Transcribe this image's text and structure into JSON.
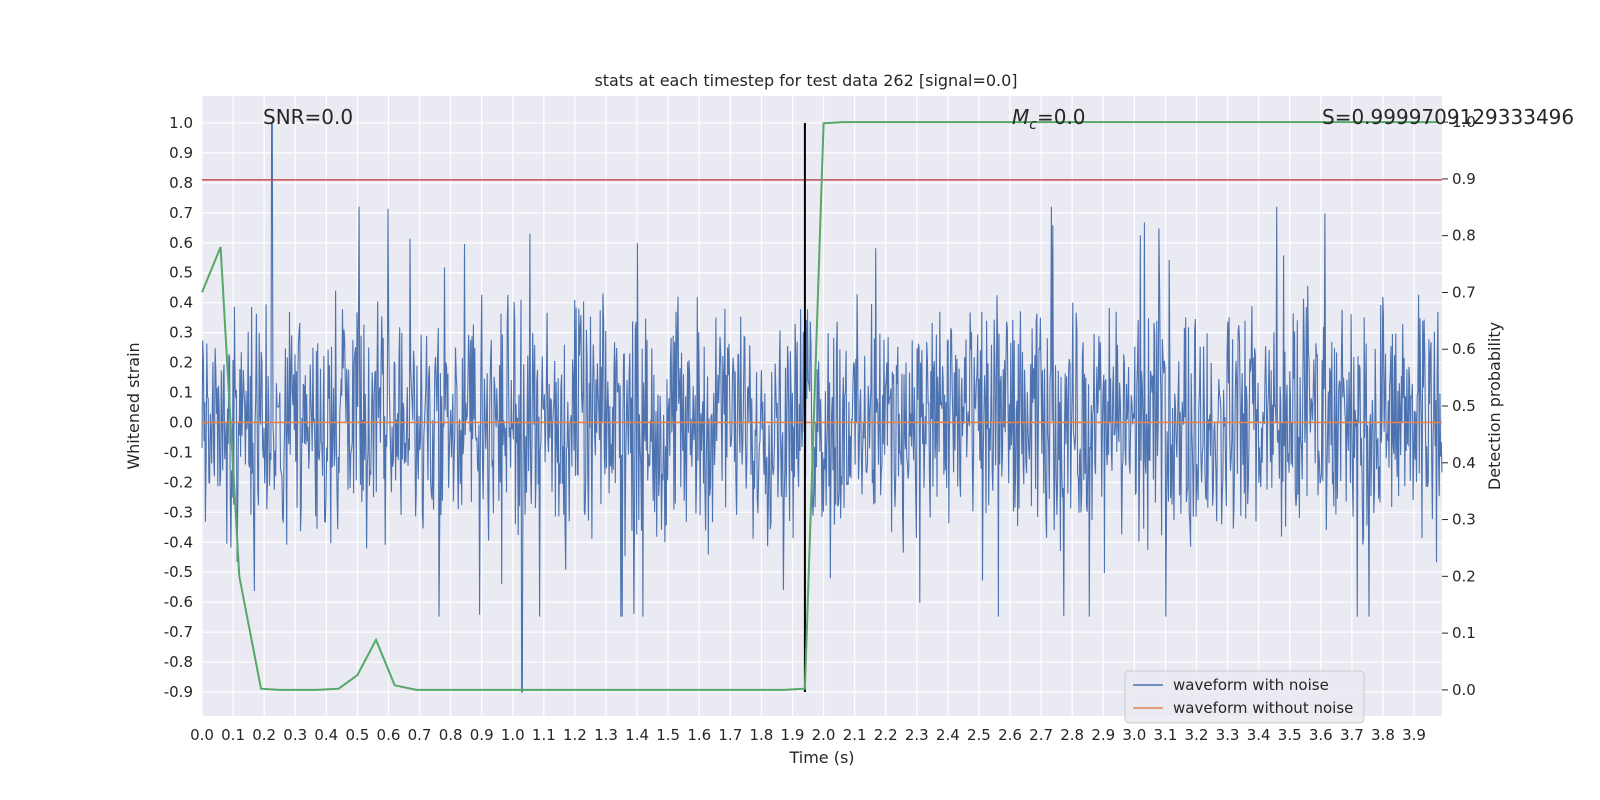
{
  "chart_data": {
    "type": "line",
    "title": "stats at each timestep for test data 262 [signal=0.0]",
    "xlabel": "Time (s)",
    "ylabel": "Whitened strain",
    "y2label": "Detection probability",
    "xlim": [
      0.0,
      3.99
    ],
    "ylim": [
      -0.98,
      1.09
    ],
    "y2lim": [
      -0.046,
      1.046
    ],
    "x_ticks": [
      "0.0",
      "0.1",
      "0.2",
      "0.3",
      "0.4",
      "0.5",
      "0.6",
      "0.7",
      "0.8",
      "0.9",
      "1.0",
      "1.1",
      "1.2",
      "1.3",
      "1.4",
      "1.5",
      "1.6",
      "1.7",
      "1.8",
      "1.9",
      "2.0",
      "2.1",
      "2.2",
      "2.3",
      "2.4",
      "2.5",
      "2.6",
      "2.7",
      "2.8",
      "2.9",
      "3.0",
      "3.1",
      "3.2",
      "3.3",
      "3.4",
      "3.5",
      "3.6",
      "3.7",
      "3.8",
      "3.9"
    ],
    "y_ticks": [
      "1.0",
      "0.9",
      "0.8",
      "0.7",
      "0.6",
      "0.5",
      "0.4",
      "0.3",
      "0.2",
      "0.1",
      "0.0",
      "-0.1",
      "-0.2",
      "-0.3",
      "-0.4",
      "-0.5",
      "-0.6",
      "-0.7",
      "-0.8",
      "-0.9"
    ],
    "y2_ticks": [
      "1.0",
      "0.9",
      "0.8",
      "0.7",
      "0.6",
      "0.5",
      "0.4",
      "0.3",
      "0.2",
      "0.1",
      "0.0"
    ],
    "annotations": {
      "snr": "SNR=0.0",
      "mc_symbol": "M",
      "mc_sub": "c",
      "mc_value": "=0.0",
      "s": "S=0.9999709129333496"
    },
    "legend": {
      "placement": "lower-right",
      "entries": [
        {
          "label": "waveform with noise",
          "color": "#4c72b0"
        },
        {
          "label": "waveform without noise",
          "color": "#dd8452"
        }
      ]
    },
    "grid": true,
    "colors": {
      "noise": "#4c72b0",
      "clean": "#dd8452",
      "probability": "#55a868",
      "threshold": "#c44e52",
      "marker": "#000000",
      "background": "#eaeaf2"
    },
    "waveform_with_noise": {
      "amplitude_range": [
        -0.9,
        1.0
      ],
      "peak_x": 0.225,
      "peak_y": 1.0,
      "min_x": 1.03,
      "min_y": -0.9
    },
    "waveform_without_noise": {
      "y": 0.0
    },
    "threshold": {
      "y": 0.81
    },
    "event_marker": {
      "x": 1.94,
      "y_range": [
        -0.9,
        1.0
      ]
    },
    "detection_probability": {
      "x": [
        0.0,
        0.06,
        0.12,
        0.19,
        0.25,
        0.31,
        0.37,
        0.44,
        0.5,
        0.56,
        0.62,
        0.69,
        0.75,
        0.81,
        0.87,
        0.94,
        1.0,
        1.06,
        1.12,
        1.19,
        1.25,
        1.31,
        1.37,
        1.44,
        1.5,
        1.56,
        1.62,
        1.69,
        1.75,
        1.81,
        1.87,
        1.94,
        2.0,
        2.06,
        3.98
      ],
      "y": [
        0.7,
        0.78,
        0.2,
        0.002,
        0.0,
        0.0,
        0.0,
        0.002,
        0.026,
        0.088,
        0.008,
        0.0,
        0.0,
        0.0,
        0.0,
        0.0,
        0.0,
        0.0,
        0.0,
        0.0,
        0.0,
        0.0,
        0.0,
        0.0,
        0.0,
        0.0,
        0.0,
        0.0,
        0.0,
        0.0,
        0.0,
        0.002,
        0.998,
        1.0,
        1.0
      ]
    }
  }
}
